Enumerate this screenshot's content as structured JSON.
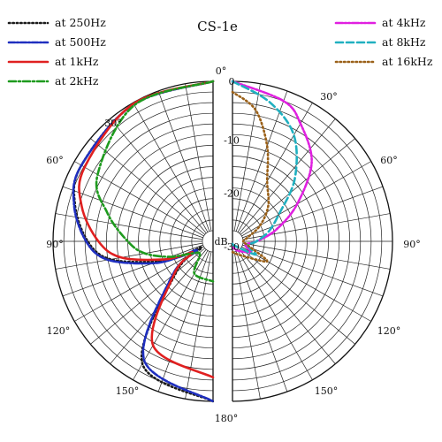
{
  "chart_data": {
    "type": "polar-line",
    "title": "CS-1e",
    "unit": "dB",
    "radial_ticks": [
      "0",
      "-10",
      "-20",
      "-30"
    ],
    "rlim": [
      -30,
      0
    ],
    "angle_labels": [
      "0°",
      "30°",
      "60°",
      "90°",
      "120°",
      "150°",
      "180°",
      "150°",
      "120°",
      "90°",
      "60°",
      "30°"
    ],
    "grid": true,
    "left_legend": [
      "at 250Hz",
      "at 500Hz",
      "at 1kHz",
      "at 2kHz"
    ],
    "right_legend": [
      "at 4kHz",
      "at 8kHz",
      "at 16kHz"
    ],
    "series": [
      {
        "name": "at 250Hz",
        "side": "left",
        "color": "#1a1a1a",
        "dash": "1.4 3",
        "points": [
          [
            0,
            0
          ],
          [
            30,
            -0.3
          ],
          [
            60,
            -1.5
          ],
          [
            75,
            -3.2
          ],
          [
            90,
            -6.5
          ],
          [
            100,
            -10.5
          ],
          [
            110,
            -19
          ],
          [
            115,
            -24
          ],
          [
            120,
            -27.5
          ],
          [
            130,
            -21
          ],
          [
            150,
            -3.5
          ],
          [
            180,
            0
          ]
        ]
      },
      {
        "name": "at 500Hz",
        "side": "left",
        "color": "#1f2fbf",
        "dash": "7 2 2 2",
        "points": [
          [
            0,
            0
          ],
          [
            30,
            -0.3
          ],
          [
            60,
            -1.5
          ],
          [
            75,
            -3
          ],
          [
            90,
            -6.2
          ],
          [
            100,
            -10
          ],
          [
            110,
            -18
          ],
          [
            115,
            -23
          ],
          [
            120,
            -26.5
          ],
          [
            130,
            -20
          ],
          [
            150,
            -4.2
          ],
          [
            180,
            0
          ]
        ]
      },
      {
        "name": "at 1kHz",
        "side": "left",
        "color": "#e02020",
        "dash": "",
        "points": [
          [
            0,
            0
          ],
          [
            30,
            -0.2
          ],
          [
            60,
            -2.2
          ],
          [
            75,
            -4.5
          ],
          [
            90,
            -8.5
          ],
          [
            100,
            -12.5
          ],
          [
            110,
            -20
          ],
          [
            115,
            -24
          ],
          [
            120,
            -25.5
          ],
          [
            130,
            -20.5
          ],
          [
            150,
            -7.5
          ],
          [
            180,
            -4.5
          ]
        ]
      },
      {
        "name": "at 2kHz",
        "side": "left",
        "color": "#1e9a1e",
        "dash": "8 3 2 3",
        "points": [
          [
            0,
            0
          ],
          [
            30,
            -0.5
          ],
          [
            60,
            -5
          ],
          [
            75,
            -9.5
          ],
          [
            90,
            -14
          ],
          [
            100,
            -17
          ],
          [
            110,
            -21.5
          ],
          [
            120,
            -25.5
          ],
          [
            135,
            -26.5
          ],
          [
            150,
            -23
          ],
          [
            180,
            -22.5
          ]
        ]
      },
      {
        "name": "at 4kHz",
        "side": "right",
        "color": "#e020e0",
        "dash": "8 2 2 2 2 2",
        "points": [
          [
            0,
            0
          ],
          [
            20,
            -2
          ],
          [
            30,
            -4.5
          ],
          [
            45,
            -9
          ],
          [
            60,
            -16
          ],
          [
            75,
            -21.5
          ],
          [
            90,
            -25.5
          ],
          [
            105,
            -27.5
          ],
          [
            120,
            -26
          ],
          [
            150,
            -28
          ],
          [
            180,
            -29
          ]
        ]
      },
      {
        "name": "at 8kHz",
        "side": "right",
        "color": "#20b0c0",
        "dash": "8 4",
        "points": [
          [
            0,
            0
          ],
          [
            15,
            -3
          ],
          [
            30,
            -7
          ],
          [
            45,
            -13.5
          ],
          [
            60,
            -20
          ],
          [
            75,
            -23
          ],
          [
            90,
            -25.5
          ],
          [
            105,
            -27
          ],
          [
            120,
            -25
          ],
          [
            150,
            -29
          ],
          [
            180,
            -29.5
          ]
        ]
      },
      {
        "name": "at 16kHz",
        "side": "right",
        "color": "#9a6018",
        "dash": "1.5 3",
        "points": [
          [
            0,
            -2
          ],
          [
            10,
            -5
          ],
          [
            20,
            -11
          ],
          [
            30,
            -17
          ],
          [
            45,
            -20.5
          ],
          [
            60,
            -24
          ],
          [
            75,
            -27
          ],
          [
            90,
            -28
          ],
          [
            105,
            -27
          ],
          [
            120,
            -22.5
          ],
          [
            150,
            -27
          ],
          [
            180,
            -28
          ]
        ]
      }
    ]
  }
}
